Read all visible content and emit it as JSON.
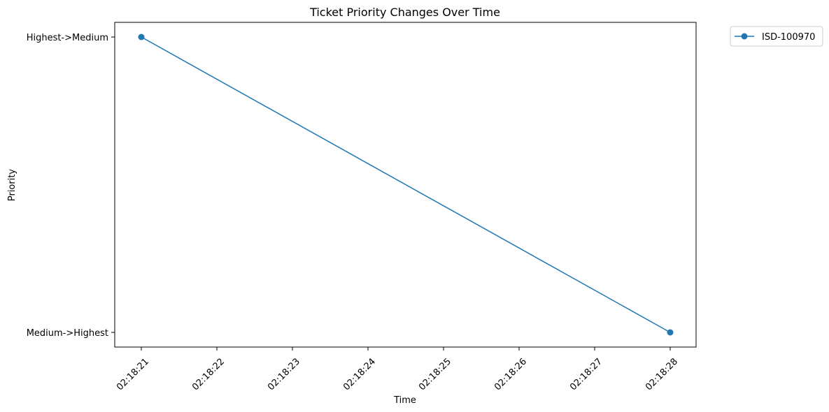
{
  "chart_data": {
    "type": "line",
    "title": "Ticket Priority Changes Over Time",
    "xlabel": "Time",
    "ylabel": "Priority",
    "x_ticks": [
      "02:18:21",
      "02:18:22",
      "02:18:23",
      "02:18:24",
      "02:18:25",
      "02:18:26",
      "02:18:27",
      "02:18:28"
    ],
    "y_categories": [
      "Medium->Highest",
      "Highest->Medium"
    ],
    "grid": false,
    "legend_placement": "outside-top-right",
    "series": [
      {
        "name": "ISD-100970",
        "color": "#1f77b4",
        "marker": "circle",
        "x": [
          "02:18:21",
          "02:18:28"
        ],
        "y": [
          "Highest->Medium",
          "Medium->Highest"
        ]
      }
    ]
  }
}
